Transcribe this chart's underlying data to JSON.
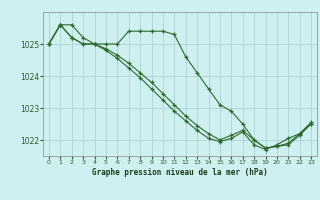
{
  "title": "Graphe pression niveau de la mer (hPa)",
  "bg_color": "#cff0f0",
  "grid_color": "#b0d8d8",
  "line_color": "#2d6a2d",
  "marker_color": "#2d6a2d",
  "xlim": [
    -0.5,
    23.5
  ],
  "ylim": [
    1021.5,
    1026.0
  ],
  "yticks": [
    1022,
    1023,
    1024,
    1025
  ],
  "xticks": [
    0,
    1,
    2,
    3,
    4,
    5,
    6,
    7,
    8,
    9,
    10,
    11,
    12,
    13,
    14,
    15,
    16,
    17,
    18,
    19,
    20,
    21,
    22,
    23
  ],
  "series1_x": [
    0,
    1,
    2,
    3,
    4,
    5,
    6,
    7,
    8,
    9,
    10,
    11,
    12,
    13,
    14,
    15,
    16,
    17,
    18,
    19,
    20,
    21,
    22,
    23
  ],
  "series1_y": [
    1025.0,
    1025.6,
    1025.6,
    1025.2,
    1025.0,
    1025.0,
    1025.0,
    1025.4,
    1025.4,
    1025.4,
    1025.4,
    1025.3,
    1024.6,
    1024.1,
    1023.6,
    1023.1,
    1022.9,
    1022.5,
    1022.0,
    1021.75,
    1021.8,
    1021.85,
    1022.15,
    1022.5
  ],
  "series2_x": [
    0,
    1,
    2,
    3,
    4,
    5,
    6,
    7,
    8,
    9,
    10,
    11,
    12,
    13,
    14,
    15,
    16,
    17,
    18,
    19,
    20,
    21,
    22,
    23
  ],
  "series2_y": [
    1025.0,
    1025.6,
    1025.2,
    1025.0,
    1025.0,
    1024.85,
    1024.65,
    1024.4,
    1024.1,
    1023.8,
    1023.45,
    1023.1,
    1022.75,
    1022.45,
    1022.2,
    1022.0,
    1022.15,
    1022.3,
    1022.0,
    1021.75,
    1021.8,
    1021.9,
    1022.2,
    1022.5
  ],
  "series3_x": [
    0,
    1,
    2,
    3,
    4,
    5,
    6,
    7,
    8,
    9,
    10,
    11,
    12,
    13,
    14,
    15,
    16,
    17,
    18,
    19,
    20,
    21,
    22,
    23
  ],
  "series3_y": [
    1025.0,
    1025.6,
    1025.2,
    1025.0,
    1025.0,
    1024.8,
    1024.55,
    1024.25,
    1023.95,
    1023.6,
    1023.25,
    1022.9,
    1022.6,
    1022.3,
    1022.05,
    1021.95,
    1022.05,
    1022.25,
    1021.85,
    1021.7,
    1021.85,
    1022.05,
    1022.2,
    1022.55
  ]
}
